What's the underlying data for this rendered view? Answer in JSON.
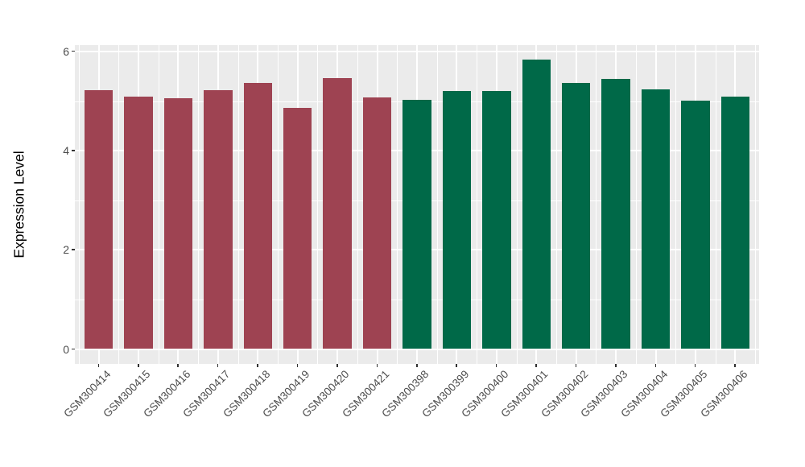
{
  "chart_data": {
    "type": "bar",
    "title": "",
    "xlabel": "",
    "ylabel": "Expression Level",
    "categories": [
      "GSM300414",
      "GSM300415",
      "GSM300416",
      "GSM300417",
      "GSM300418",
      "GSM300419",
      "GSM300420",
      "GSM300421",
      "GSM300398",
      "GSM300399",
      "GSM300400",
      "GSM300401",
      "GSM300402",
      "GSM300403",
      "GSM300404",
      "GSM300405",
      "GSM300406"
    ],
    "values": [
      5.22,
      5.09,
      5.06,
      5.22,
      5.36,
      4.87,
      5.46,
      5.08,
      5.02,
      5.2,
      5.21,
      5.83,
      5.37,
      5.45,
      5.24,
      5.01,
      5.09
    ],
    "bar_colors": [
      "#9E4352",
      "#9E4352",
      "#9E4352",
      "#9E4352",
      "#9E4352",
      "#9E4352",
      "#9E4352",
      "#9E4352",
      "#006948",
      "#006948",
      "#006948",
      "#006948",
      "#006948",
      "#006948",
      "#006948",
      "#006948",
      "#006948"
    ],
    "group_colors": {
      "left_group": "#9E4352",
      "right_group": "#006948"
    },
    "yticks": [
      0,
      2,
      4,
      6
    ],
    "ytick_labels": [
      "0",
      "2",
      "4",
      "6"
    ],
    "yticks_minor": [
      1,
      3,
      5
    ],
    "ylim": [
      0,
      6.13
    ],
    "grid": true,
    "legend": "none",
    "panel_background": "#EBEBEB",
    "gridline_color": "#FFFFFF",
    "tick_label_color": "#4D4D4D",
    "axis_title_color": "#000000",
    "figure_background": "#FFFFFF"
  }
}
